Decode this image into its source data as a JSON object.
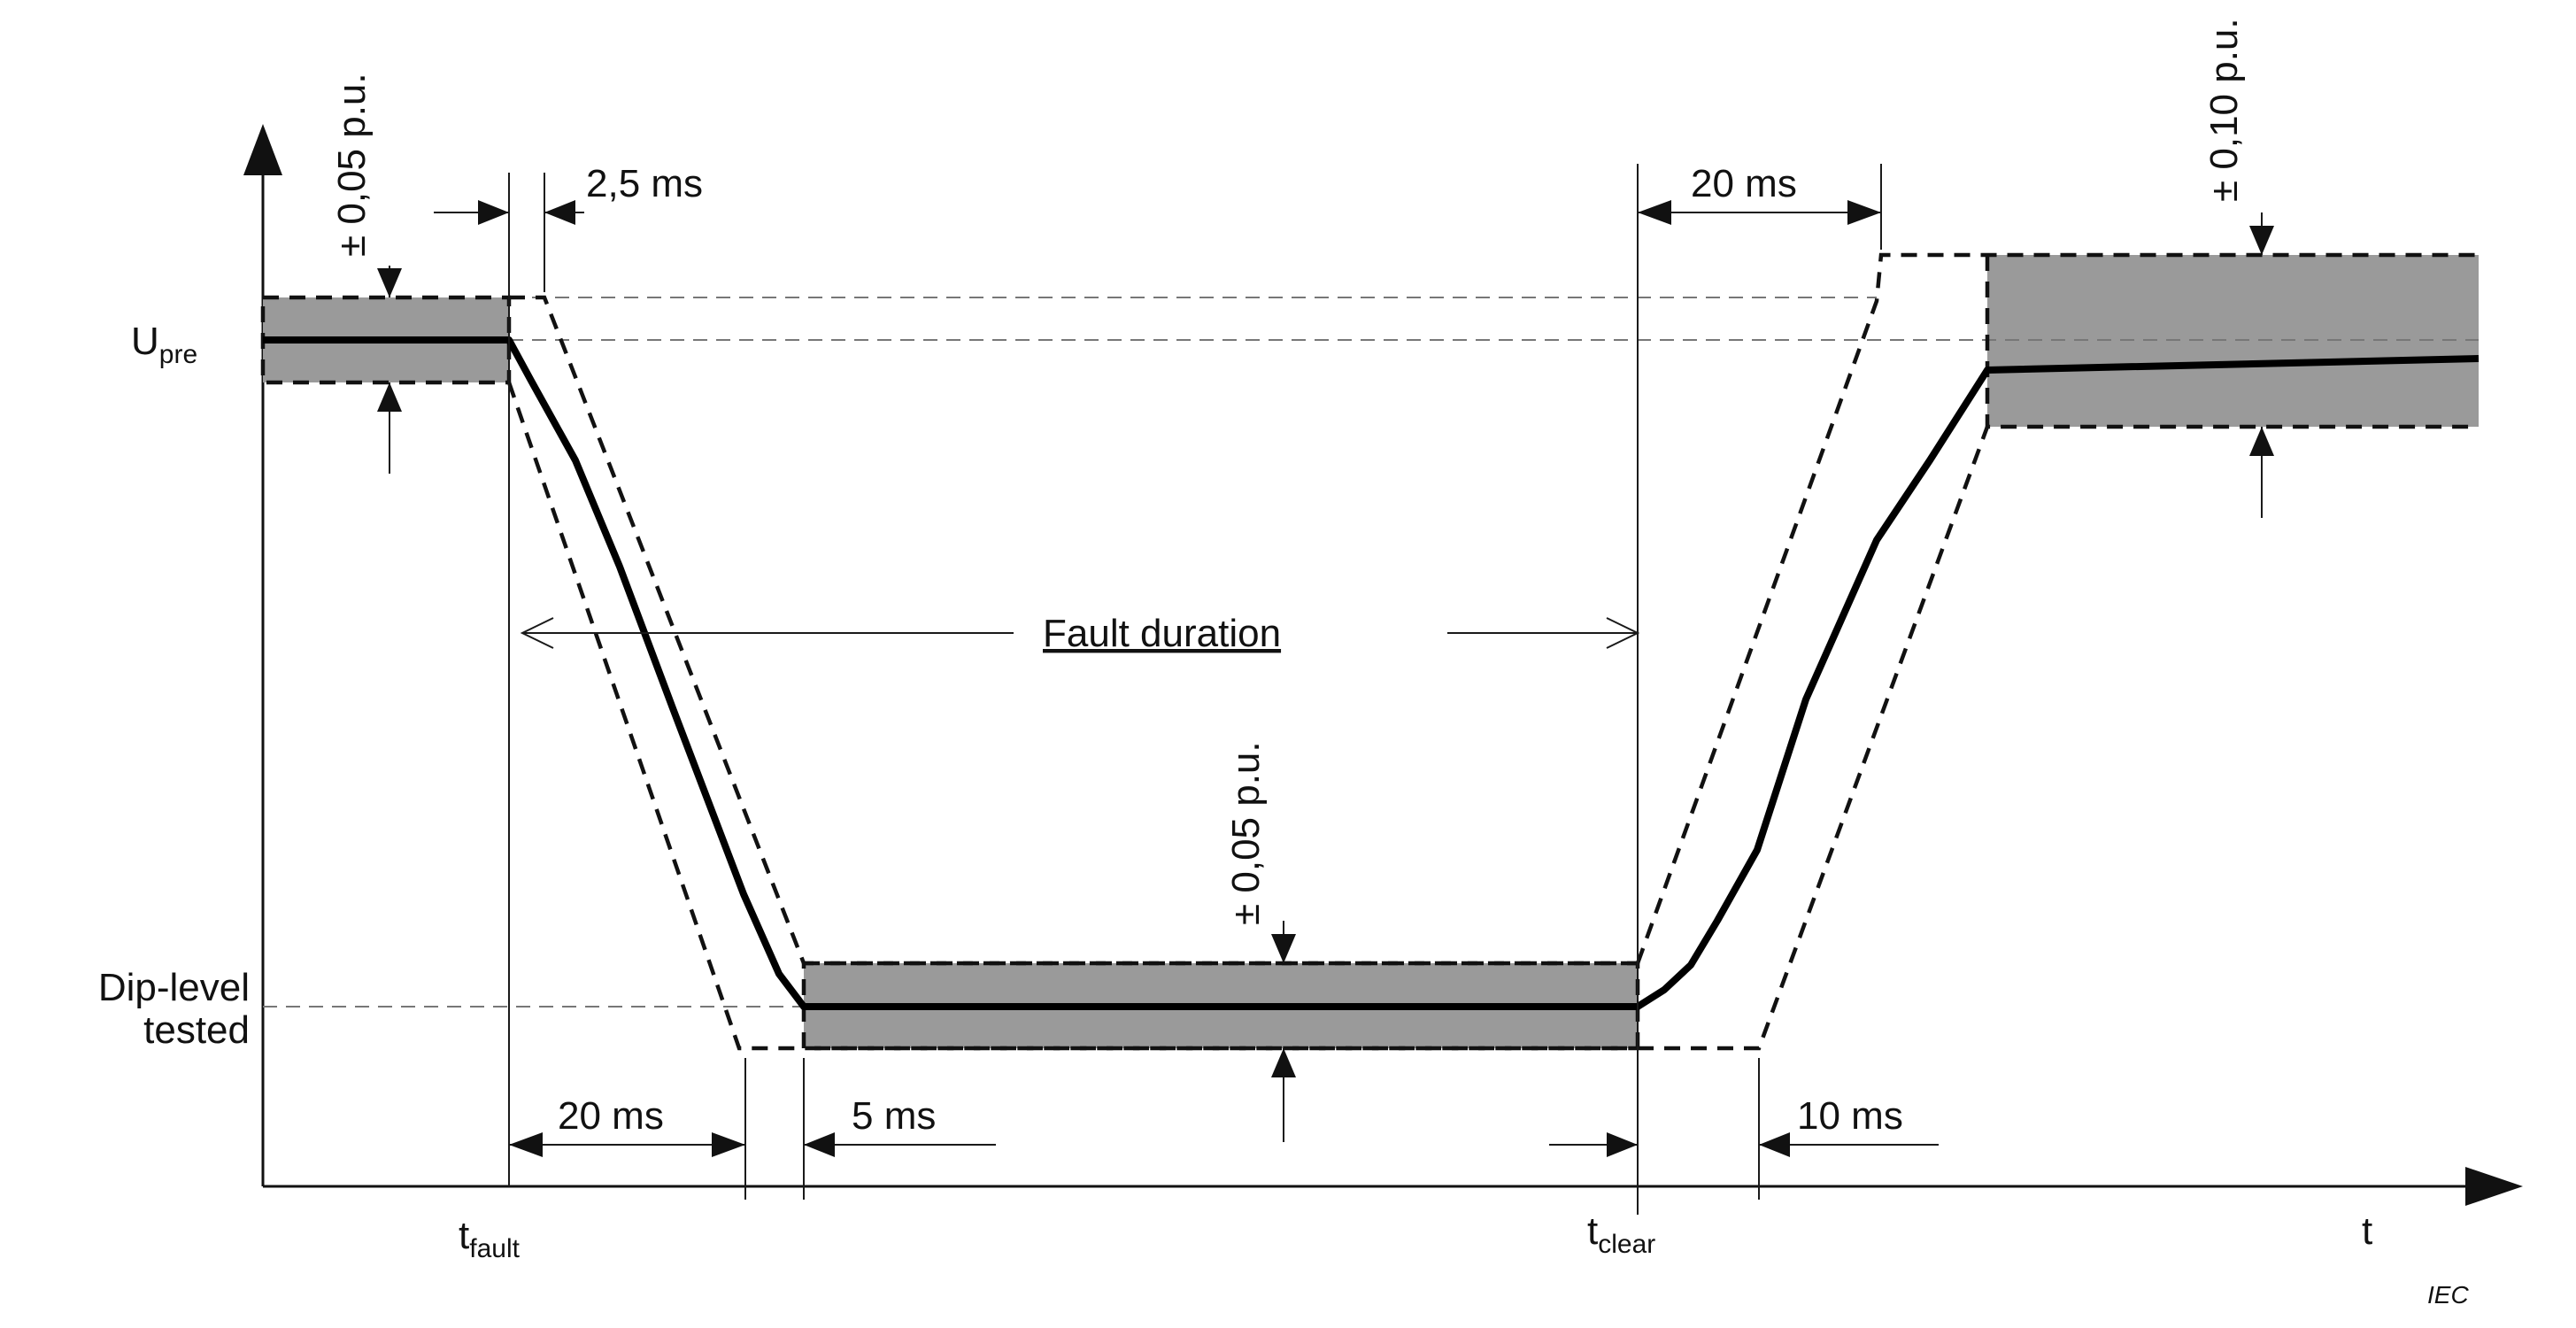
{
  "labels": {
    "u_pre_main": "U",
    "u_pre_sub": "pre",
    "dip_level_line1": "Dip-level",
    "dip_level_line2": "tested",
    "t_fault_main": "t",
    "t_fault_sub": "fault",
    "t_clear_main": "t",
    "t_clear_sub": "clear",
    "t_axis": "t",
    "fault_duration": "Fault duration",
    "iec": "IEC"
  },
  "dimensions": {
    "fall_tolerance": "2,5 ms",
    "rise_tolerance": "20 ms",
    "fall_time": "20 ms",
    "settle_time": "5 ms",
    "recovery_time": "10 ms"
  },
  "tolerances": {
    "pre_fault": "± 0,05 p.u.",
    "dip": "± 0,05 p.u.",
    "post_fault": "± 0,10 p.u."
  },
  "colors": {
    "band": "#9a9a9a",
    "signal": "#000000"
  }
}
